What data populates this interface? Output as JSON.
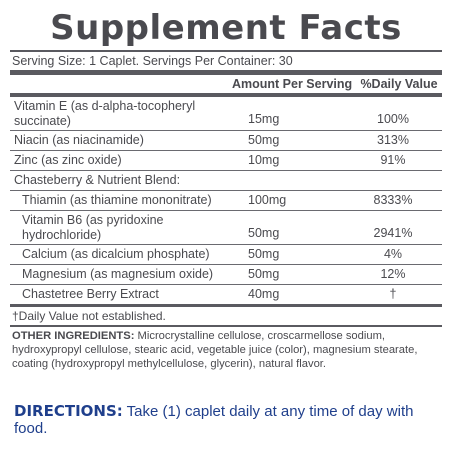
{
  "title": "Supplement Facts",
  "serving": "Serving Size: 1 Caplet.  Servings Per Container: 30",
  "headers": {
    "amount": "Amount Per Serving",
    "daily_value": "%Daily Value"
  },
  "rows": [
    {
      "name": "Vitamin E (as d-alpha-tocopheryl succinate)",
      "amount": "15mg",
      "dv": "100%"
    },
    {
      "name": "Niacin (as niacinamide)",
      "amount": "50mg",
      "dv": "313%"
    },
    {
      "name": "Zinc (as zinc oxide)",
      "amount": "10mg",
      "dv": "91%"
    },
    {
      "name": "Chasteberry & Nutrient Blend:",
      "amount": "",
      "dv": ""
    },
    {
      "name": "Thiamin (as thiamine mononitrate)",
      "amount": "100mg",
      "dv": "8333%"
    },
    {
      "name": "Vitamin B6 (as pyridoxine hydrochloride)",
      "amount": "50mg",
      "dv": "2941%"
    },
    {
      "name": "Calcium (as dicalcium phosphate)",
      "amount": "50mg",
      "dv": "4%"
    },
    {
      "name": "Magnesium (as magnesium oxide)",
      "amount": "50mg",
      "dv": "12%"
    },
    {
      "name": "Chastetree Berry Extract",
      "amount": "40mg",
      "dv": "†"
    }
  ],
  "footnote": "†Daily Value not established.",
  "other_ingredients": {
    "label": "OTHER INGREDIENTS:",
    "text": " Microcrystalline cellulose, croscarmellose sodium, hydroxypropyl cellulose, stearic acid, vegetable juice (color), magnesium stearate, coating (hydroxypropyl methylcellulose, glycerin), natural flavor."
  },
  "directions": {
    "label": "DIRECTIONS:",
    "text": " Take (1) caplet daily at any time of day with food."
  },
  "colors": {
    "text": "#4a4a4f",
    "rule": "#5a5a60",
    "directions": "#1f3f8c"
  }
}
